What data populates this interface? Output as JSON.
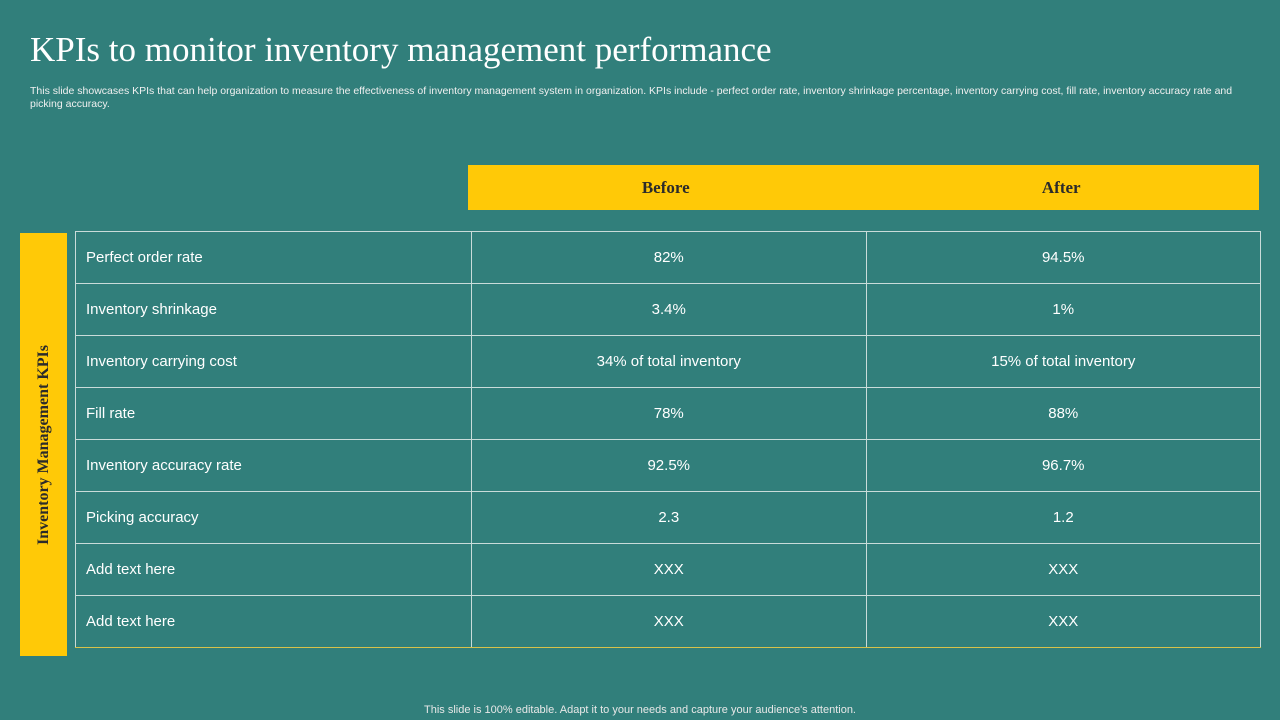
{
  "slide": {
    "title": "KPIs to monitor inventory management performance",
    "subtitle": "This slide showcases KPIs that can help organization to measure the effectiveness of inventory management system in organization. KPIs include - perfect order rate, inventory shrinkage percentage, inventory carrying cost, fill rate, inventory accuracy rate and picking accuracy.",
    "footer": "This slide is 100% editable. Adapt it to your needs and capture your audience's attention."
  },
  "table": {
    "side_label": "Inventory Management KPIs",
    "headers": [
      "Before",
      "After"
    ],
    "rows": [
      {
        "kpi": "Perfect order rate",
        "before": "82%",
        "after": "94.5%"
      },
      {
        "kpi": "Inventory  shrinkage",
        "before": "3.4%",
        "after": "1%"
      },
      {
        "kpi": "Inventory  carrying cost",
        "before": "34% of total inventory",
        "after": "15% of total inventory"
      },
      {
        "kpi": "Fill rate",
        "before": "78%",
        "after": "88%"
      },
      {
        "kpi": "Inventory  accuracy rate",
        "before": "92.5%",
        "after": "96.7%"
      },
      {
        "kpi": "Picking accuracy",
        "before": "2.3",
        "after": "1.2"
      },
      {
        "kpi": "Add text here",
        "before": "XXX",
        "after": "XXX"
      },
      {
        "kpi": "Add text here",
        "before": "XXX",
        "after": "XXX"
      }
    ]
  },
  "colors": {
    "background": "#317F7B",
    "accent": "#FFC907"
  }
}
